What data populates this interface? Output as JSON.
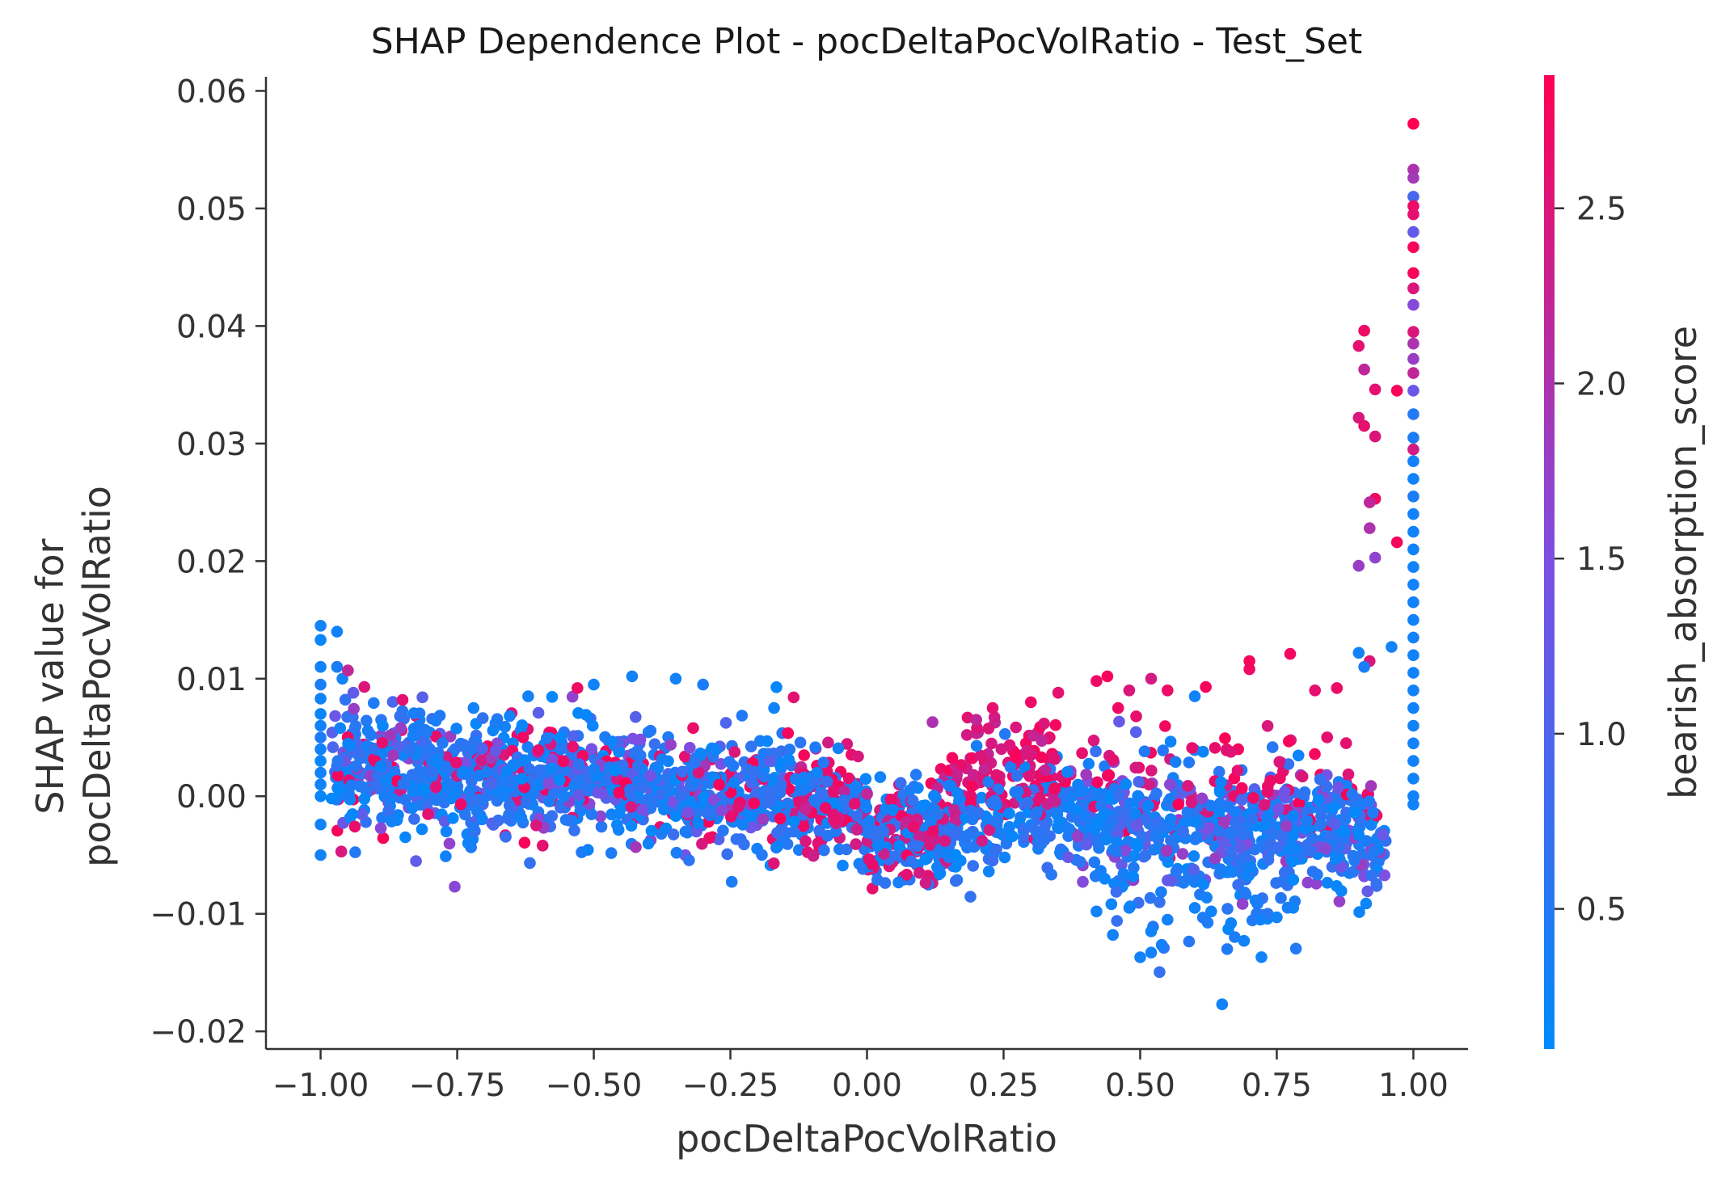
{
  "chart_data": {
    "type": "scatter",
    "title": "SHAP Dependence Plot - pocDeltaPocVolRatio - Test_Set",
    "xlabel": "pocDeltaPocVolRatio",
    "ylabel_lines": [
      "SHAP value for",
      "pocDeltaPocVolRatio"
    ],
    "xlim": [
      -1.1,
      1.1
    ],
    "ylim": [
      -0.0215,
      0.0612
    ],
    "x_ticks": [
      -1.0,
      -0.75,
      -0.5,
      -0.25,
      0.0,
      0.25,
      0.5,
      0.75,
      1.0
    ],
    "x_tick_labels": [
      "−1.00",
      "−0.75",
      "−0.50",
      "−0.25",
      "0.00",
      "0.25",
      "0.50",
      "0.75",
      "1.00"
    ],
    "y_ticks": [
      -0.02,
      -0.01,
      0.0,
      0.01,
      0.02,
      0.03,
      0.04,
      0.05,
      0.06
    ],
    "y_tick_labels": [
      "−0.02",
      "−0.01",
      "0.00",
      "0.01",
      "0.02",
      "0.03",
      "0.04",
      "0.05",
      "0.06"
    ],
    "colorbar": {
      "label": "bearish_absorption_score",
      "range": [
        0.1,
        2.88
      ],
      "ticks": [
        0.5,
        1.0,
        1.5,
        2.0,
        2.5
      ],
      "tick_labels": [
        "0.5",
        "1.0",
        "1.5",
        "2.0",
        "2.5"
      ],
      "color_low": "#008afb",
      "color_mid": "#7c4fe3",
      "color_high": "#ff0052"
    },
    "points": [
      [
        -1.0,
        0.0145,
        0.3
      ],
      [
        -1.0,
        0.0133,
        0.2
      ],
      [
        -1.0,
        0.011,
        0.3
      ],
      [
        -1.0,
        0.0095,
        0.4
      ],
      [
        -1.0,
        0.0083,
        0.3
      ],
      [
        -1.0,
        0.007,
        0.2
      ],
      [
        -1.0,
        0.006,
        0.3
      ],
      [
        -1.0,
        0.005,
        0.4
      ],
      [
        -1.0,
        0.004,
        0.3
      ],
      [
        -1.0,
        0.003,
        0.2
      ],
      [
        -1.0,
        0.002,
        0.3
      ],
      [
        -1.0,
        0.001,
        0.3
      ],
      [
        -1.0,
        0.0,
        0.2
      ],
      [
        -1.0,
        -0.0024,
        0.3
      ],
      [
        -1.0,
        -0.005,
        0.3
      ],
      [
        -0.97,
        0.014,
        0.3
      ],
      [
        -0.97,
        0.011,
        0.4
      ],
      [
        -0.96,
        0.01,
        0.3
      ],
      [
        -0.95,
        0.0107,
        2.2
      ],
      [
        -0.94,
        0.0088,
        1.2
      ],
      [
        -0.92,
        0.0093,
        2.5
      ],
      [
        -0.85,
        0.0082,
        2.6
      ],
      [
        -0.82,
        0.006,
        0.4
      ],
      [
        -0.8,
        0.004,
        0.5
      ],
      [
        -0.77,
        -0.003,
        0.3
      ],
      [
        -0.73,
        -0.004,
        0.3
      ],
      [
        -0.72,
        0.0075,
        0.3
      ],
      [
        -0.68,
        0.0062,
        0.4
      ],
      [
        -0.62,
        0.0085,
        0.3
      ],
      [
        -0.5,
        0.0095,
        0.3
      ],
      [
        -0.53,
        0.0092,
        2.7
      ],
      [
        -0.43,
        0.0102,
        0.3
      ],
      [
        -0.35,
        0.01,
        0.3
      ],
      [
        -0.3,
        0.0095,
        0.4
      ],
      [
        -0.17,
        0.0075,
        0.3
      ],
      [
        0.12,
        0.0063,
        2.0
      ],
      [
        0.2,
        0.0065,
        2.2
      ],
      [
        0.23,
        0.0075,
        2.6
      ],
      [
        0.3,
        0.008,
        2.7
      ],
      [
        0.35,
        0.0088,
        2.6
      ],
      [
        0.42,
        0.0098,
        2.7
      ],
      [
        0.44,
        0.0102,
        2.8
      ],
      [
        0.48,
        0.009,
        2.5
      ],
      [
        0.52,
        0.01,
        2.4
      ],
      [
        0.55,
        0.009,
        2.7
      ],
      [
        0.6,
        0.0085,
        0.3
      ],
      [
        0.62,
        0.0093,
        2.8
      ],
      [
        0.7,
        0.0108,
        2.7
      ],
      [
        0.7,
        0.0115,
        2.8
      ],
      [
        0.82,
        0.009,
        2.6
      ],
      [
        0.86,
        0.0092,
        2.7
      ],
      [
        0.42,
        -0.0098,
        0.3
      ],
      [
        0.45,
        -0.0118,
        0.3
      ],
      [
        0.48,
        -0.0095,
        0.3
      ],
      [
        0.5,
        -0.0137,
        0.3
      ],
      [
        0.52,
        -0.0133,
        0.3
      ],
      [
        0.52,
        -0.0115,
        0.3
      ],
      [
        0.55,
        -0.0105,
        0.3
      ],
      [
        0.6,
        -0.0095,
        0.3
      ],
      [
        0.63,
        -0.0098,
        0.3
      ],
      [
        0.65,
        -0.0177,
        0.3
      ],
      [
        0.69,
        -0.0123,
        0.3
      ],
      [
        0.72,
        -0.0105,
        0.3
      ],
      [
        0.75,
        -0.0103,
        0.3
      ],
      [
        0.78,
        -0.0095,
        0.3
      ],
      [
        0.91,
        0.0396,
        2.7
      ],
      [
        0.9,
        0.0383,
        2.6
      ],
      [
        0.91,
        0.0363,
        2.2
      ],
      [
        0.93,
        0.0346,
        2.6
      ],
      [
        0.97,
        0.0345,
        2.8
      ],
      [
        0.9,
        0.0322,
        2.5
      ],
      [
        0.91,
        0.0315,
        2.6
      ],
      [
        0.93,
        0.0306,
        2.5
      ],
      [
        0.93,
        0.0253,
        2.7
      ],
      [
        0.92,
        0.025,
        2.2
      ],
      [
        0.92,
        0.0228,
        2.0
      ],
      [
        0.93,
        0.0203,
        1.7
      ],
      [
        0.97,
        0.0216,
        2.8
      ],
      [
        0.9,
        0.0196,
        1.8
      ],
      [
        0.92,
        0.0115,
        2.5
      ],
      [
        0.9,
        0.0122,
        0.3
      ],
      [
        0.91,
        0.011,
        0.4
      ],
      [
        0.96,
        0.0127,
        0.3
      ],
      [
        1.0,
        0.0572,
        2.9
      ],
      [
        1.0,
        0.0533,
        2.0
      ],
      [
        1.0,
        0.0526,
        1.9
      ],
      [
        1.0,
        0.051,
        0.9
      ],
      [
        1.0,
        0.0502,
        2.7
      ],
      [
        1.0,
        0.0495,
        2.6
      ],
      [
        1.0,
        0.048,
        1.2
      ],
      [
        1.0,
        0.0467,
        2.8
      ],
      [
        1.0,
        0.0445,
        2.8
      ],
      [
        1.0,
        0.0432,
        2.5
      ],
      [
        1.0,
        0.0418,
        1.6
      ],
      [
        1.0,
        0.0395,
        2.5
      ],
      [
        1.0,
        0.0385,
        2.0
      ],
      [
        1.0,
        0.0372,
        1.8
      ],
      [
        1.0,
        0.036,
        2.2
      ],
      [
        1.0,
        0.0345,
        1.3
      ],
      [
        1.0,
        0.0325,
        0.5
      ],
      [
        1.0,
        0.0305,
        0.4
      ],
      [
        1.0,
        0.0295,
        2.4
      ],
      [
        1.0,
        0.0285,
        0.3
      ],
      [
        1.0,
        0.027,
        0.3
      ],
      [
        1.0,
        0.0255,
        0.4
      ],
      [
        1.0,
        0.024,
        0.3
      ],
      [
        1.0,
        0.0225,
        0.3
      ],
      [
        1.0,
        0.021,
        0.3
      ],
      [
        1.0,
        0.0195,
        0.3
      ],
      [
        1.0,
        0.018,
        0.3
      ],
      [
        1.0,
        0.0165,
        0.3
      ],
      [
        1.0,
        0.015,
        0.3
      ],
      [
        1.0,
        0.0135,
        0.3
      ],
      [
        1.0,
        0.012,
        0.3
      ],
      [
        1.0,
        0.0105,
        0.3
      ],
      [
        1.0,
        0.009,
        0.3
      ],
      [
        1.0,
        0.0075,
        0.3
      ],
      [
        1.0,
        0.006,
        0.3
      ],
      [
        1.0,
        0.0045,
        0.3
      ],
      [
        1.0,
        0.003,
        0.3
      ],
      [
        1.0,
        0.0015,
        0.3
      ],
      [
        1.0,
        0.0,
        0.3
      ],
      [
        1.0,
        -0.0007,
        0.3
      ]
    ]
  }
}
